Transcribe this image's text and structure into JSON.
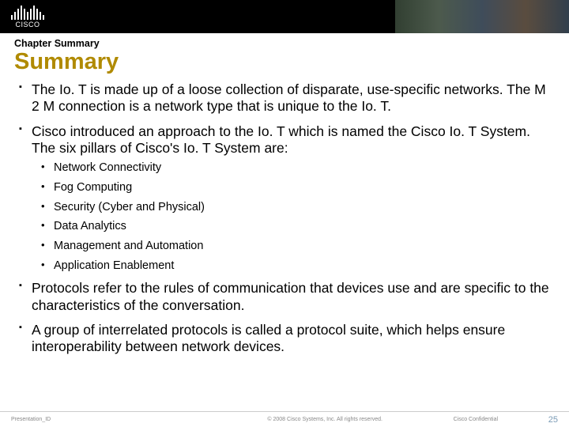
{
  "header": {
    "logo_text": "CISCO"
  },
  "chapter_label": "Chapter Summary",
  "title": "Summary",
  "title_color": "#b08a00",
  "bullets": [
    {
      "text": "The Io. T is made up of a loose collection of disparate, use-specific networks. The M 2 M connection is a network type that is unique to the Io. T."
    },
    {
      "text": "Cisco introduced an approach to the Io. T which is named the Cisco Io. T System. The six pillars of Cisco's Io. T System are:",
      "sub": [
        "Network Connectivity",
        "Fog Computing",
        "Security (Cyber and Physical)",
        "Data Analytics",
        "Management and Automation",
        "Application Enablement"
      ]
    },
    {
      "text": "Protocols refer to the rules of communication that devices use and are specific to the characteristics of the conversation."
    },
    {
      "text": "A group of interrelated protocols is called a protocol suite, which helps ensure interoperability between network devices."
    }
  ],
  "footer": {
    "left": "Presentation_ID",
    "center": "© 2008 Cisco Systems, Inc. All rights reserved.",
    "confidential": "Cisco Confidential",
    "page": "25",
    "page_color": "#7a9ab5"
  }
}
